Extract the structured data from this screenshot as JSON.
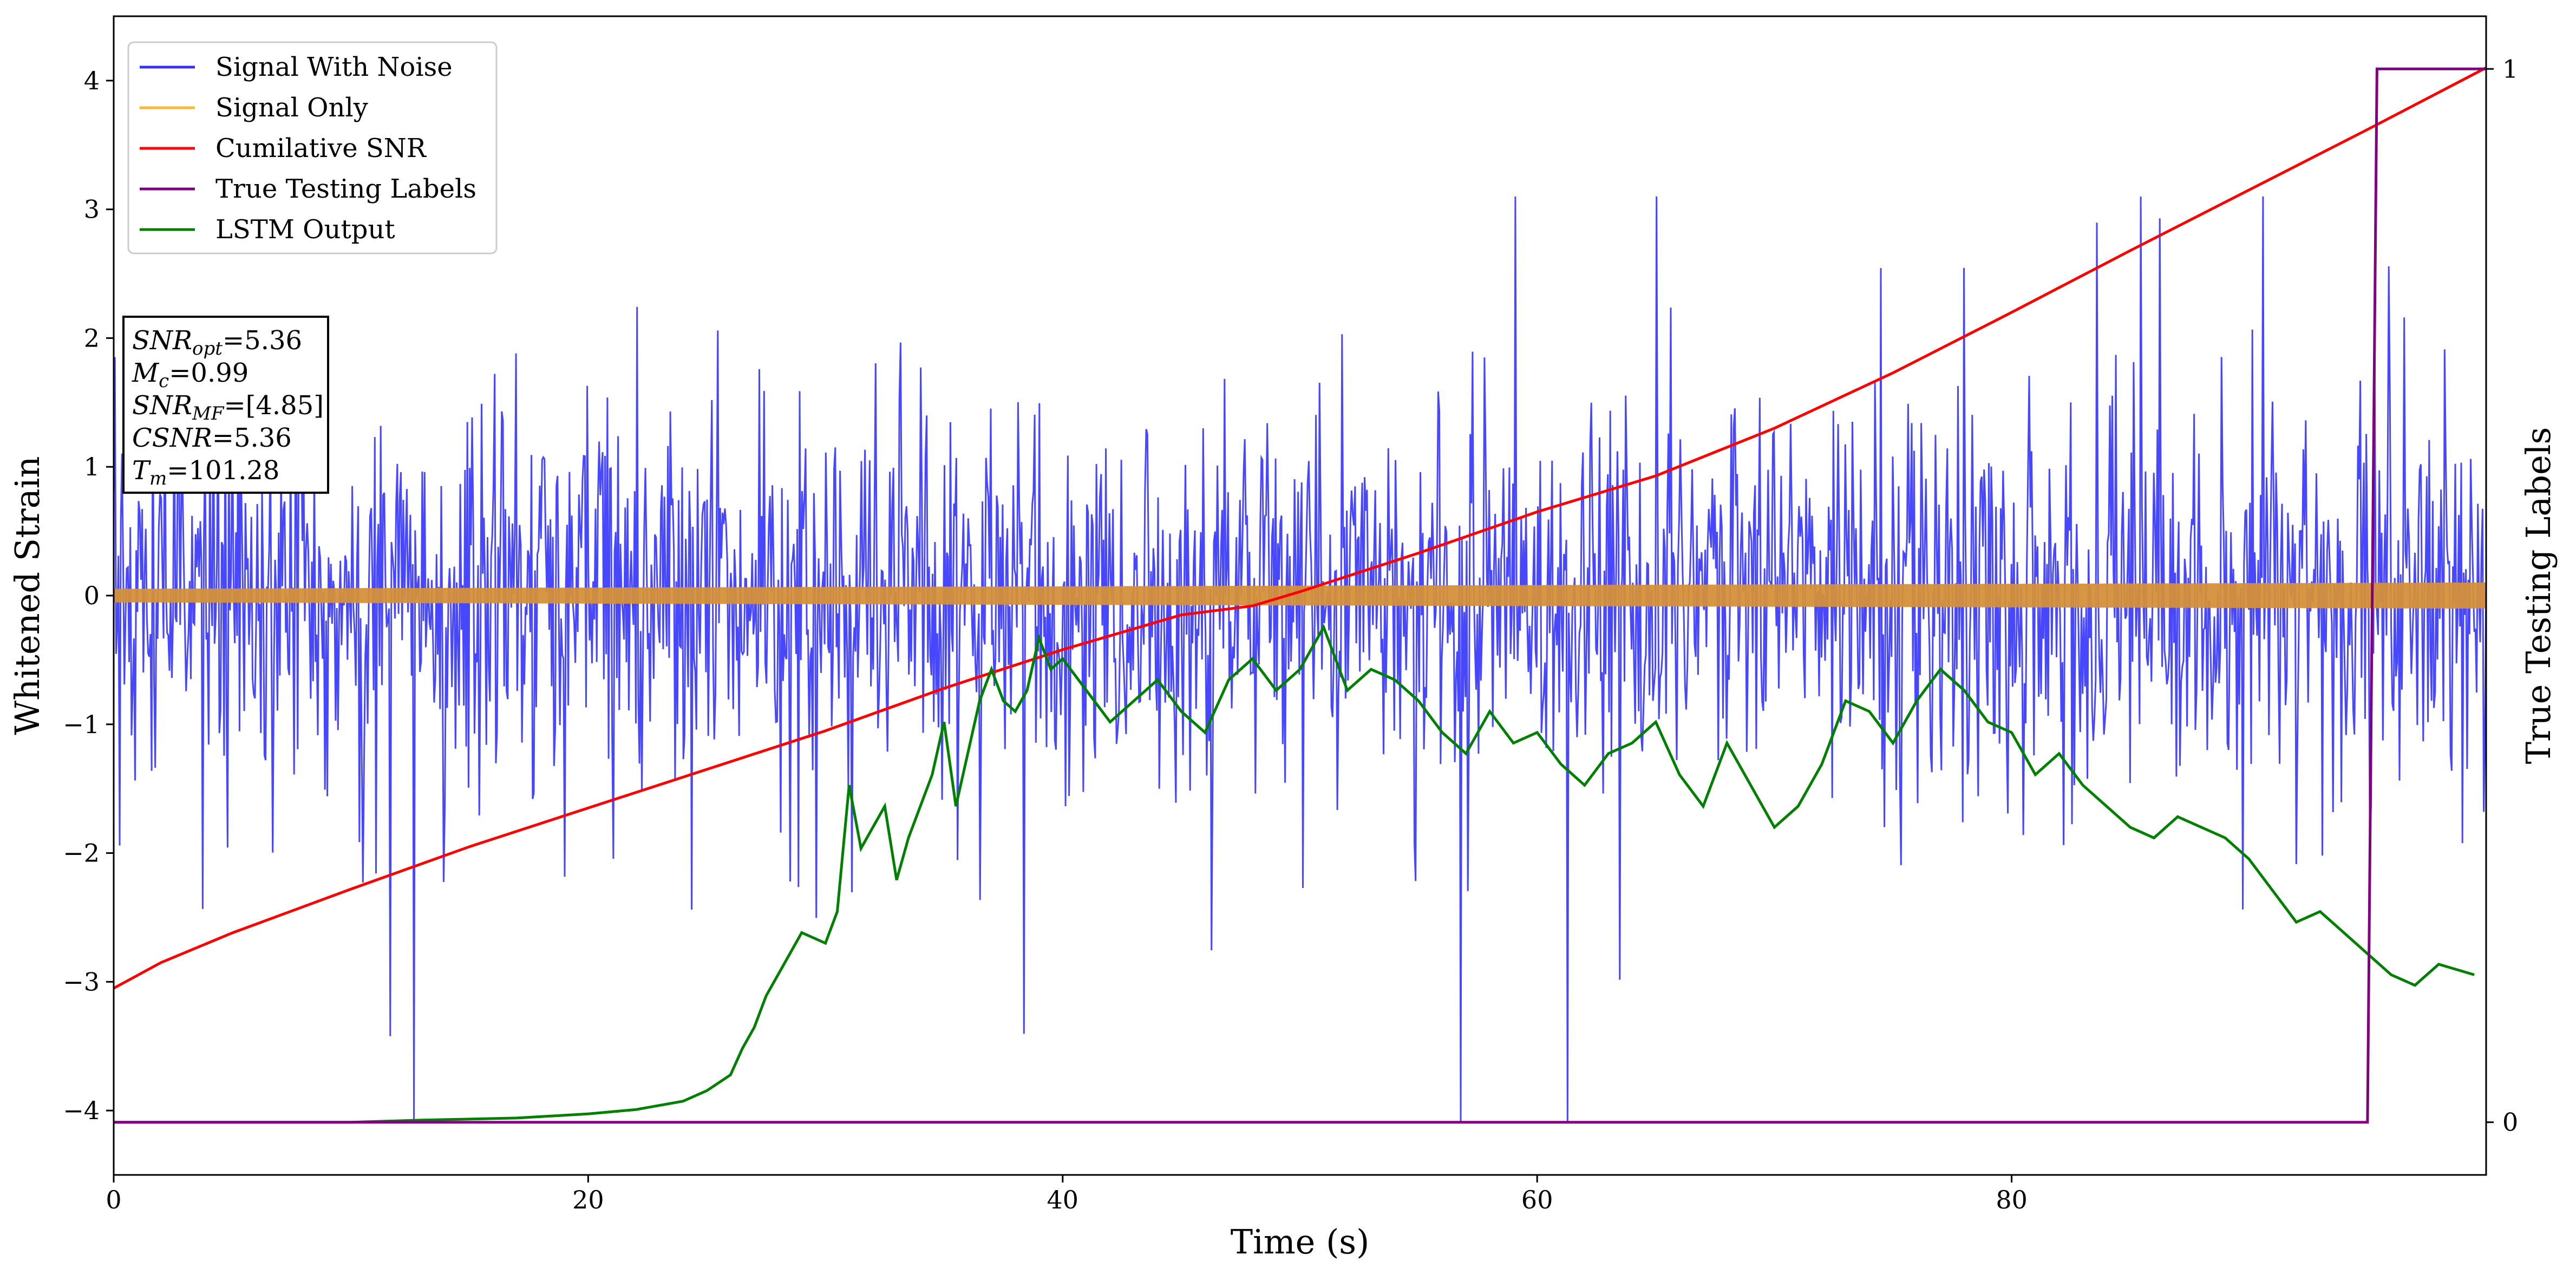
{
  "chart_data": {
    "type": "line",
    "xlabel": "Time (s)",
    "ylabel": "Whitened Strain",
    "y2label": "True Testing Labels",
    "xlim": [
      0,
      100
    ],
    "ylim": [
      -4.5,
      4.5
    ],
    "y2lim": [
      -0.05,
      1.05
    ],
    "xticks": [
      0,
      20,
      40,
      60,
      80
    ],
    "yticks": [
      -4,
      -3,
      -2,
      -1,
      0,
      1,
      2,
      3,
      4
    ],
    "y2ticks": [
      0,
      1
    ],
    "xtick_labels": [
      "0",
      "20",
      "40",
      "60",
      "80"
    ],
    "ytick_labels": [
      "−4",
      "−3",
      "−2",
      "−1",
      "0",
      "1",
      "2",
      "3",
      "4"
    ],
    "y2tick_labels": [
      "0",
      "1"
    ],
    "legend": {
      "placement": "top-left",
      "entries": [
        {
          "label": "Signal With Noise",
          "color": "#3333ff"
        },
        {
          "label": "Signal Only",
          "color": "#ffb733"
        },
        {
          "label": "Cumilative SNR",
          "color": "#ff0000"
        },
        {
          "label": "True Testing Labels",
          "color": "#800080"
        },
        {
          "label": "LSTM Output",
          "color": "#008000"
        }
      ]
    },
    "annotation": {
      "lines": [
        {
          "sym": "SNR",
          "sub": "opt",
          "val": "=5.36"
        },
        {
          "sym": "M",
          "sub": "c",
          "val": "=0.99"
        },
        {
          "sym": "SNR",
          "sub": "MF",
          "val": "=[4.85]"
        },
        {
          "sym": "CSNR",
          "sub": "",
          "val": "=5.36"
        },
        {
          "sym": "T",
          "sub": "m",
          "val": "=101.28"
        }
      ]
    },
    "series": [
      {
        "name": "Signal With Noise",
        "axis": "left",
        "color": "#3333ff",
        "style": "dense noise band",
        "x_range": [
          0,
          100
        ],
        "typical_range": [
          -1.6,
          1.6
        ],
        "max": 3.1,
        "min": -4.1
      },
      {
        "name": "Signal Only",
        "axis": "left",
        "color": "#ffb733",
        "style": "oscillating band",
        "amplitude_start": 0.05,
        "amplitude_end": 0.1
      },
      {
        "name": "Cumilative SNR",
        "axis": "left",
        "color": "#ff0000",
        "x": [
          0,
          2,
          5,
          10,
          15,
          20,
          25,
          30,
          35,
          40,
          45,
          48,
          50,
          55,
          60,
          65,
          70,
          75,
          80,
          85,
          90,
          95,
          100
        ],
        "y": [
          -3.05,
          -2.85,
          -2.62,
          -2.28,
          -1.95,
          -1.65,
          -1.35,
          -1.05,
          -0.72,
          -0.42,
          -0.15,
          -0.08,
          0.03,
          0.33,
          0.65,
          0.93,
          1.3,
          1.73,
          2.2,
          2.68,
          3.15,
          3.62,
          4.1
        ]
      },
      {
        "name": "True Testing Labels",
        "axis": "right",
        "color": "#800080",
        "x": [
          0,
          95.0,
          95.4,
          100
        ],
        "y": [
          0,
          0,
          1,
          1
        ]
      },
      {
        "name": "LSTM Output",
        "axis": "right",
        "color": "#008000",
        "x": [
          0,
          10,
          13,
          17,
          20,
          22,
          24,
          25,
          26,
          26.5,
          27,
          27.5,
          28,
          28.5,
          29,
          30,
          30.5,
          31,
          31.5,
          32,
          32.5,
          33,
          33.5,
          34,
          34.5,
          35,
          35.5,
          36,
          36.5,
          37,
          37.5,
          38,
          38.5,
          39,
          39.5,
          40,
          41,
          42,
          43,
          44,
          45,
          46,
          47,
          48,
          49,
          50,
          50.5,
          51,
          52,
          53,
          54,
          55,
          56,
          57,
          58,
          59,
          60,
          61,
          62,
          63,
          64,
          65,
          66,
          67,
          68,
          69,
          70,
          71,
          72,
          73,
          74,
          75,
          76,
          77,
          78,
          79,
          80,
          81,
          82,
          83,
          84,
          85,
          86,
          87,
          88,
          89,
          90,
          91,
          92,
          93,
          94,
          95,
          96,
          97,
          98,
          99.5
        ],
        "y": [
          0,
          0,
          0.002,
          0.004,
          0.008,
          0.012,
          0.02,
          0.03,
          0.045,
          0.07,
          0.09,
          0.12,
          0.14,
          0.16,
          0.18,
          0.17,
          0.2,
          0.32,
          0.26,
          0.28,
          0.3,
          0.23,
          0.27,
          0.3,
          0.33,
          0.38,
          0.3,
          0.35,
          0.4,
          0.43,
          0.4,
          0.39,
          0.41,
          0.46,
          0.43,
          0.44,
          0.41,
          0.38,
          0.4,
          0.42,
          0.39,
          0.37,
          0.42,
          0.44,
          0.41,
          0.43,
          0.45,
          0.47,
          0.41,
          0.43,
          0.42,
          0.4,
          0.37,
          0.35,
          0.39,
          0.36,
          0.37,
          0.34,
          0.32,
          0.35,
          0.36,
          0.38,
          0.33,
          0.3,
          0.36,
          0.32,
          0.28,
          0.3,
          0.34,
          0.4,
          0.39,
          0.36,
          0.4,
          0.43,
          0.41,
          0.38,
          0.37,
          0.33,
          0.35,
          0.32,
          0.3,
          0.28,
          0.27,
          0.29,
          0.28,
          0.27,
          0.25,
          0.22,
          0.19,
          0.2,
          0.18,
          0.16,
          0.14,
          0.13,
          0.15,
          0.14
        ]
      }
    ]
  }
}
